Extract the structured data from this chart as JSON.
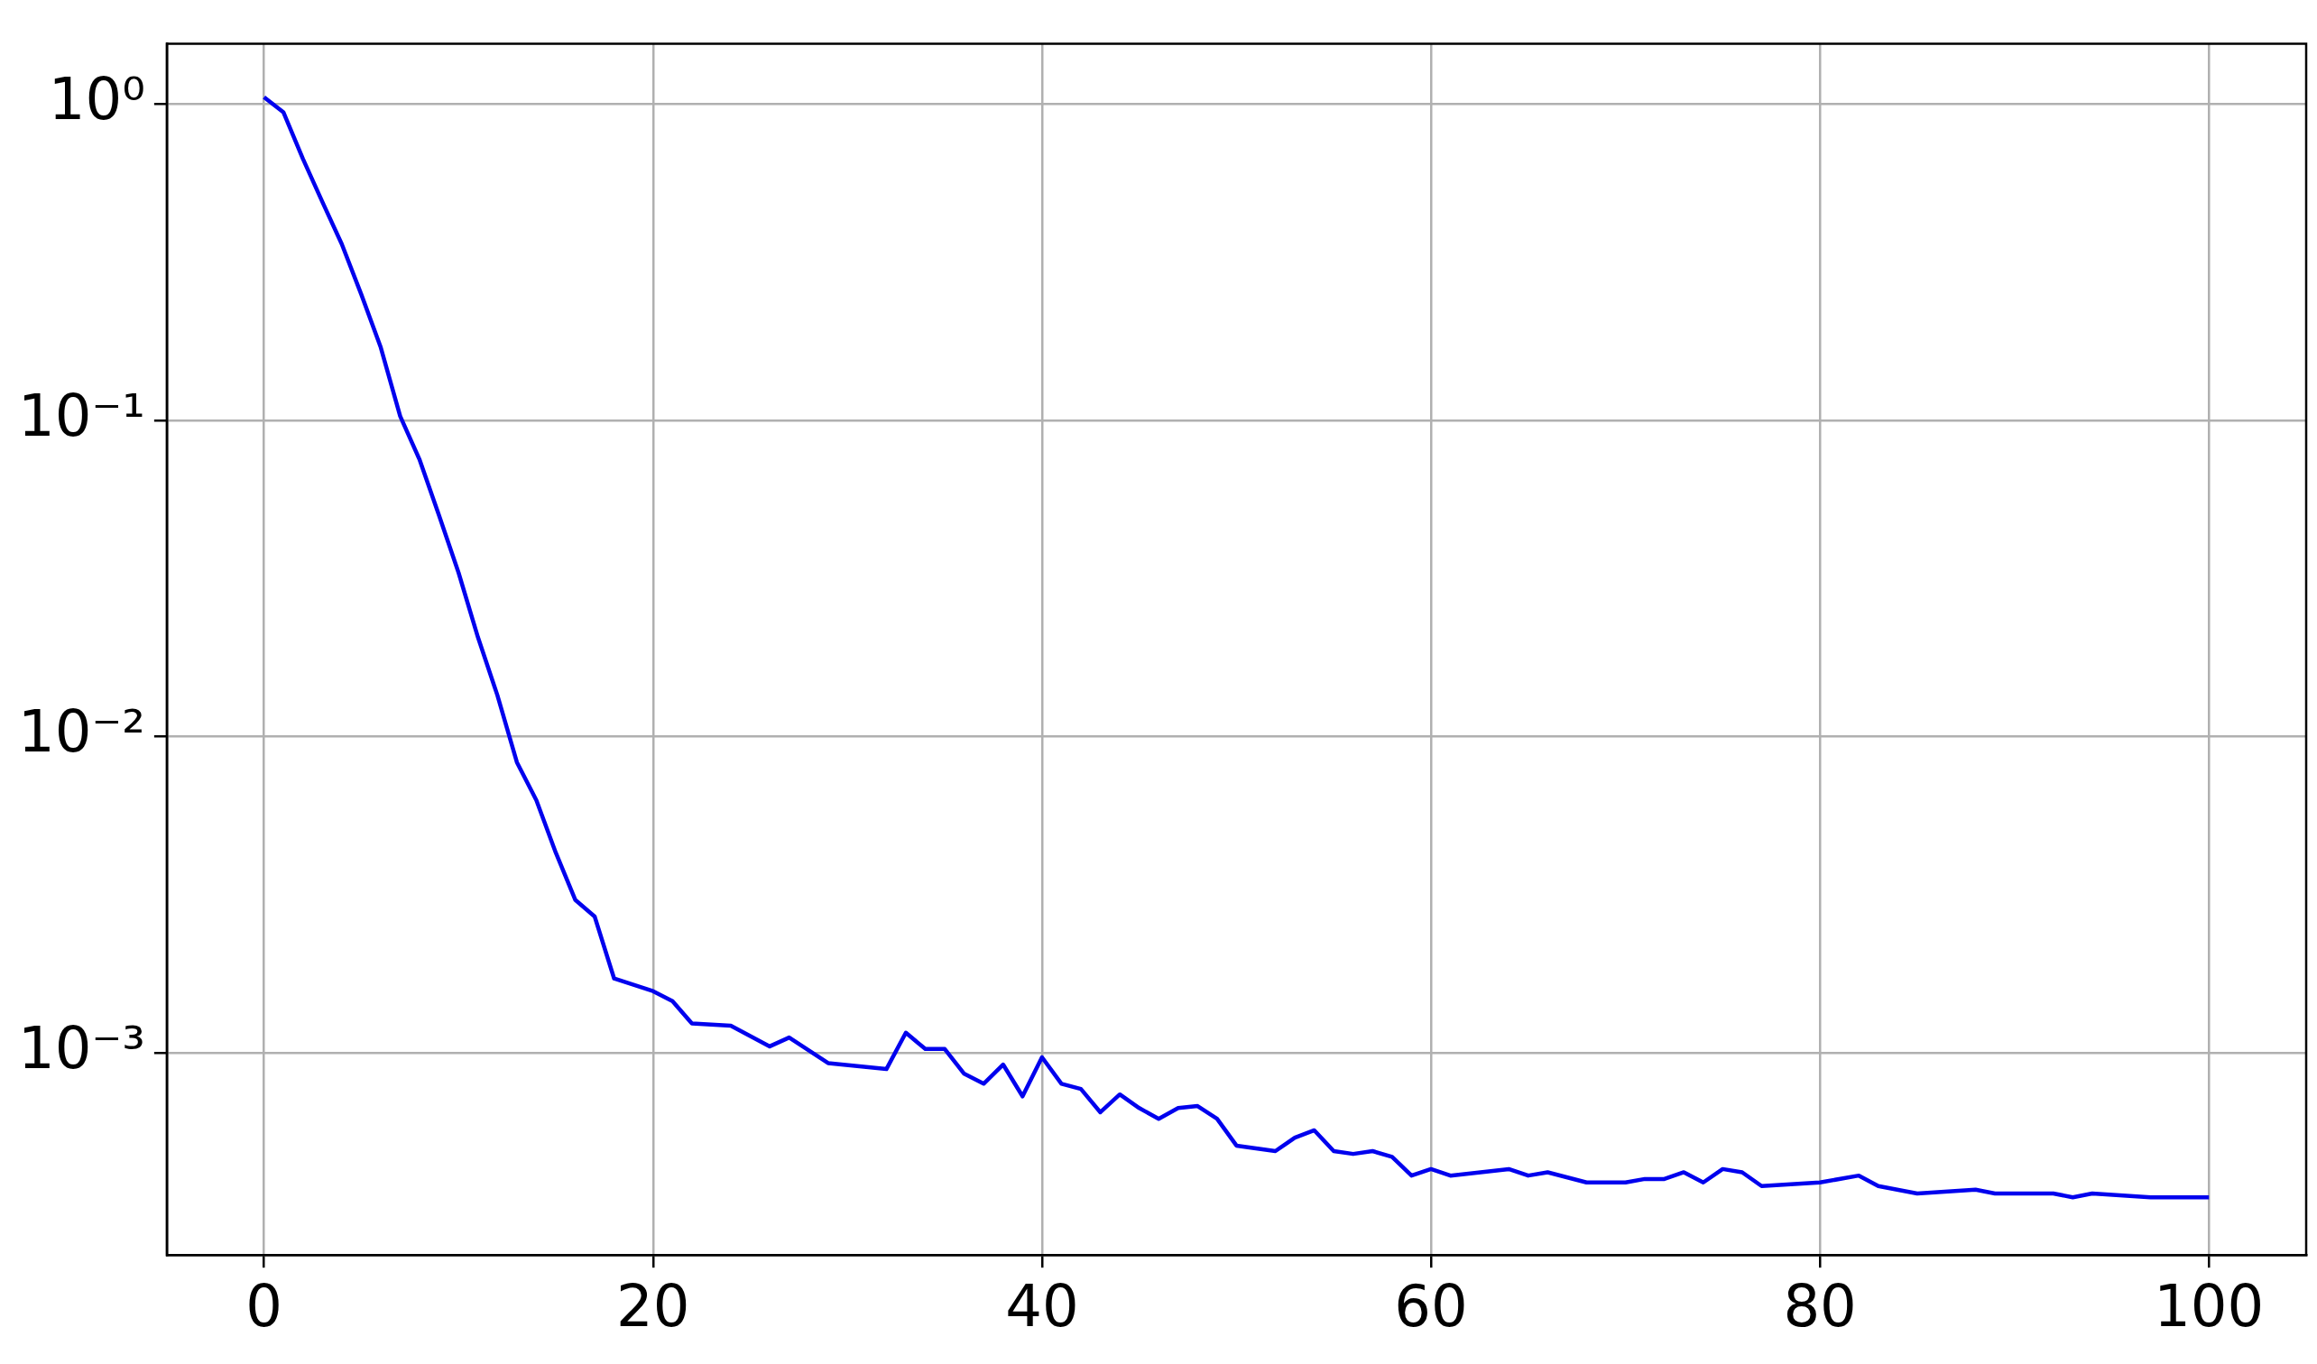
{
  "chart_data": {
    "type": "line",
    "log": "y",
    "grid": true,
    "legend": false,
    "marker": "none",
    "line_style": "solid",
    "xlim": [
      -5,
      105
    ],
    "xticks": [
      0,
      20,
      40,
      60,
      80,
      100
    ],
    "ylim": [
      0.00023,
      1.55
    ],
    "yticks": [
      {
        "value": 1,
        "label": "10⁰"
      },
      {
        "value": 0.1,
        "label": "10⁻¹"
      },
      {
        "value": 0.01,
        "label": "10⁻²"
      },
      {
        "value": 0.001,
        "label": "10⁻³"
      }
    ],
    "series": [
      {
        "color": "#0000ee",
        "x": [
          0,
          1,
          2,
          3,
          4,
          5,
          6,
          7,
          8,
          9,
          10,
          11,
          12,
          13,
          14,
          15,
          16,
          17,
          18,
          20,
          21,
          22,
          24,
          26,
          27,
          29,
          32,
          33,
          34,
          35,
          36,
          37,
          38,
          39,
          40,
          41,
          42,
          43,
          44,
          45,
          46,
          47,
          48,
          49,
          50,
          52,
          53,
          54,
          55,
          56,
          57,
          58,
          59,
          60,
          61,
          64,
          65,
          66,
          68,
          70,
          71,
          72,
          73,
          74,
          75,
          76,
          77,
          80,
          82,
          83,
          85,
          88,
          89,
          92,
          93,
          94,
          97,
          100
        ],
        "values": [
          1.05,
          0.94,
          0.67,
          0.49,
          0.36,
          0.25,
          0.17,
          0.103,
          0.075,
          0.05,
          0.033,
          0.0206,
          0.0135,
          0.0083,
          0.0063,
          0.0043,
          0.00305,
          0.0027,
          0.00172,
          0.00157,
          0.00146,
          0.00124,
          0.00122,
          0.00105,
          0.00112,
          0.00093,
          0.00089,
          0.00116,
          0.00103,
          0.00103,
          0.00086,
          0.0008,
          0.00092,
          0.00073,
          0.00097,
          0.0008,
          0.00077,
          0.00065,
          0.00074,
          0.00067,
          0.00062,
          0.00067,
          0.00068,
          0.00062,
          0.00051,
          0.00049,
          0.00054,
          0.00057,
          0.00049,
          0.00048,
          0.00049,
          0.00047,
          0.00041,
          0.00043,
          0.00041,
          0.00043,
          0.00041,
          0.00042,
          0.00039,
          0.00039,
          0.0004,
          0.0004,
          0.00042,
          0.00039,
          0.00043,
          0.00042,
          0.00038,
          0.00039,
          0.00041,
          0.00038,
          0.00036,
          0.00037,
          0.00036,
          0.00036,
          0.00035,
          0.00036,
          0.00035,
          0.00035
        ]
      }
    ]
  }
}
